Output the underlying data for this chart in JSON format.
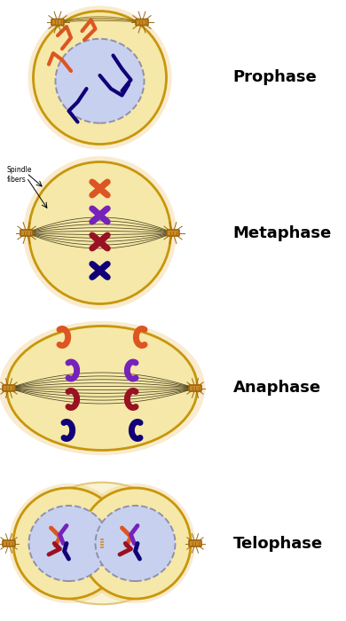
{
  "background_color": "#ffffff",
  "cell_outer_color": "#f5e8a8",
  "cell_outer_color2": "#f0d090",
  "cell_border_color": "#c8960a",
  "nucleus_color": "#c8d0f0",
  "nucleus_border_color": "#9090a8",
  "spindle_color": "#201800",
  "chromosome_red": "#991122",
  "chromosome_orange": "#dd5522",
  "chromosome_blue": "#110077",
  "chromosome_purple": "#7722bb",
  "centriole_color": "#cc8822",
  "centriole_border": "#996611",
  "label_fontsize": 13,
  "phases": [
    "Prophase",
    "Metaphase",
    "Anaphase",
    "Telophase"
  ],
  "fig_w": 3.9,
  "fig_h": 7.0,
  "dpi": 100
}
